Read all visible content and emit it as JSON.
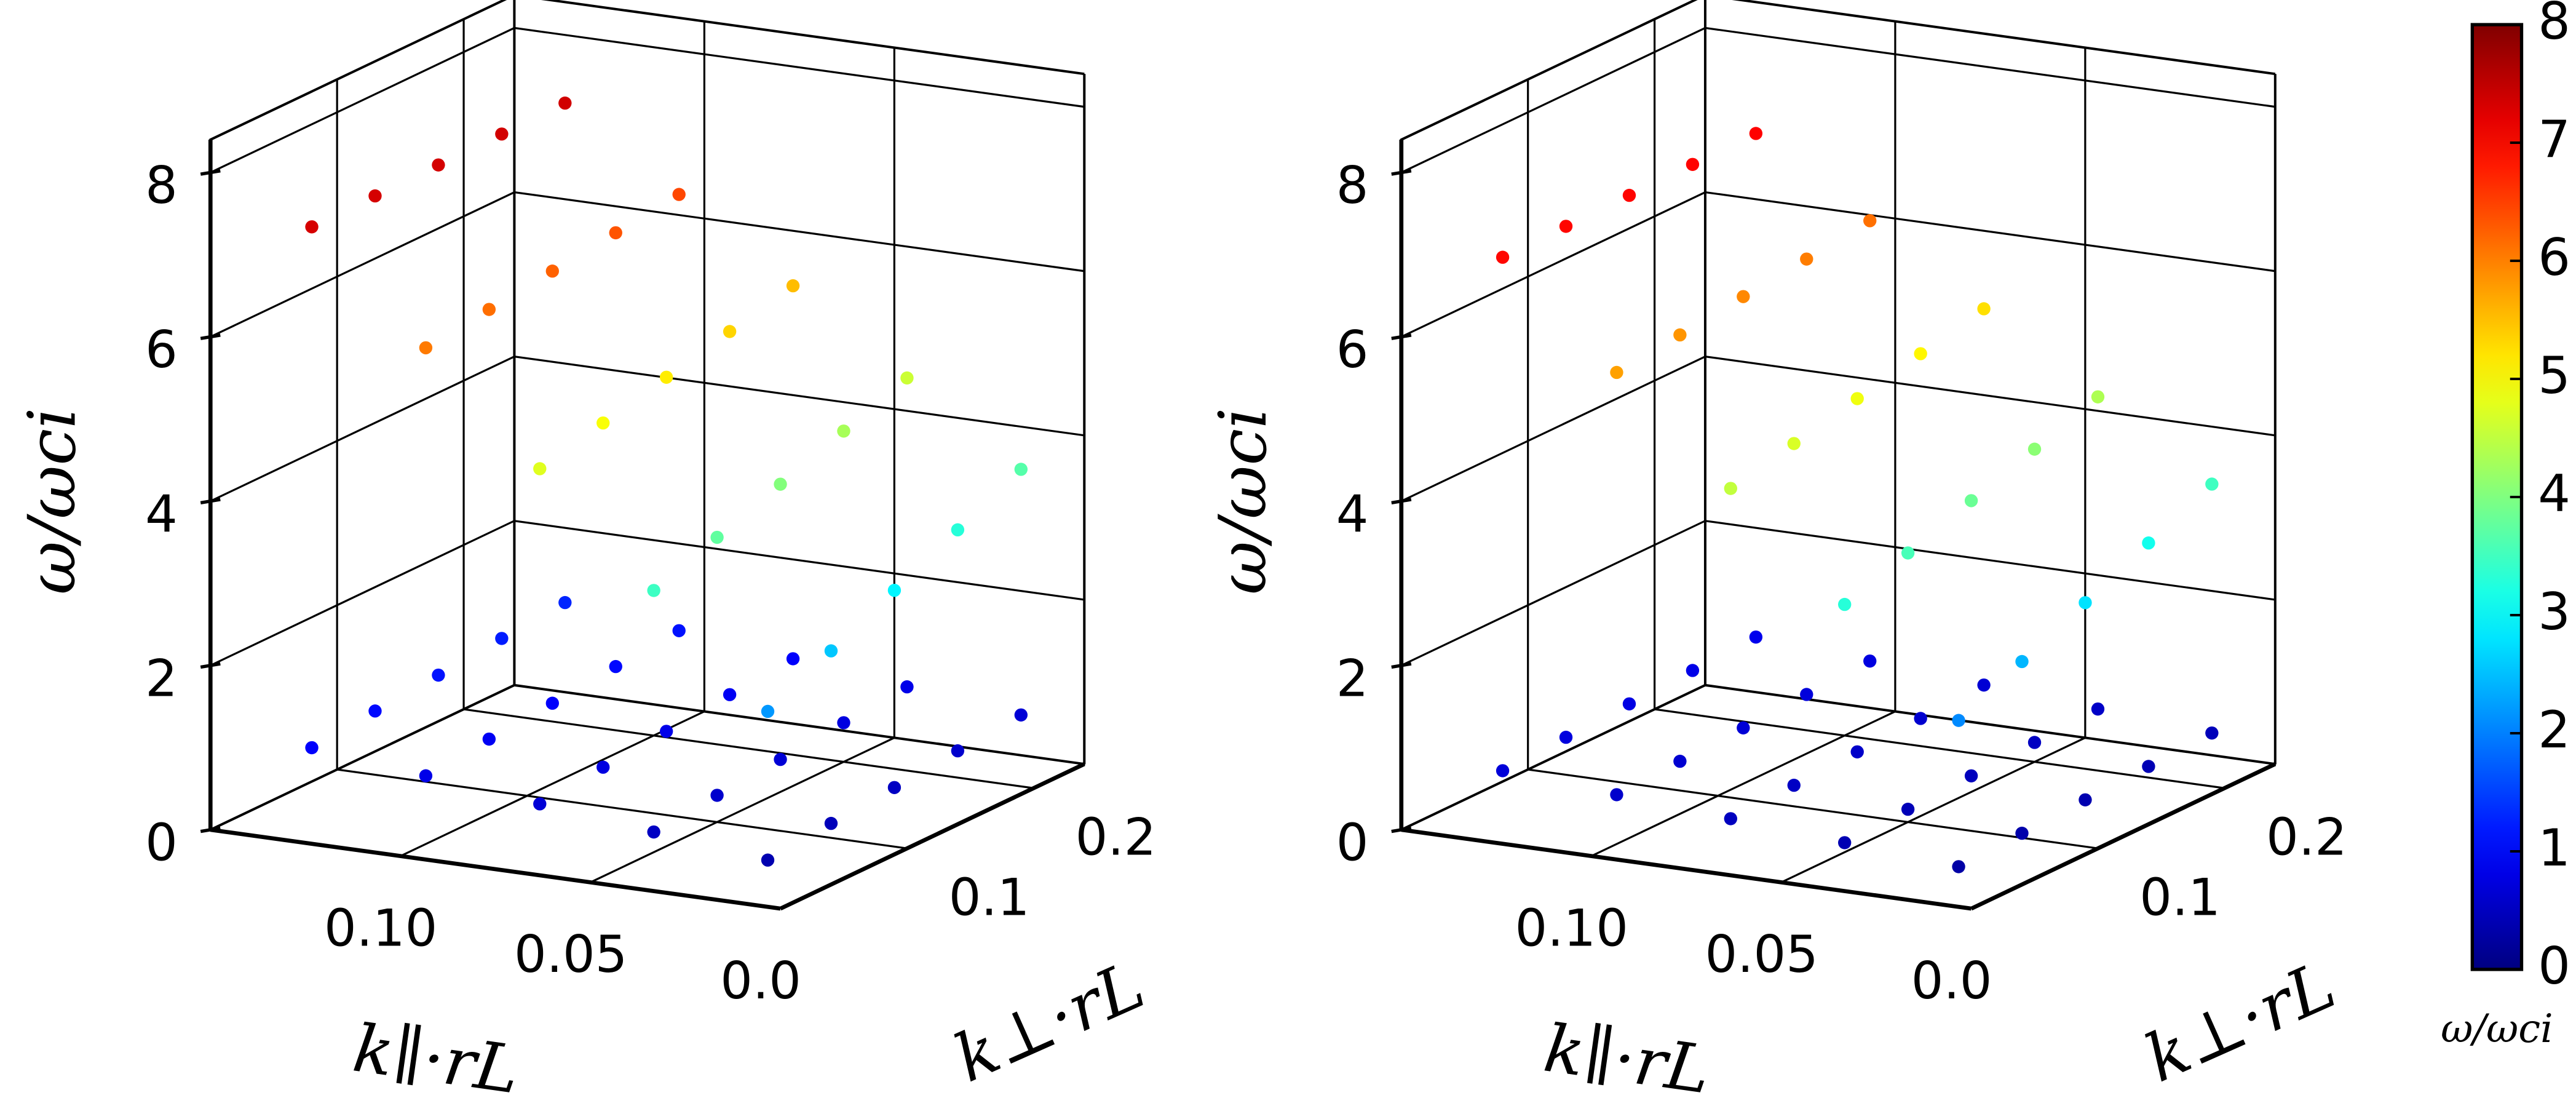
{
  "chart_data": [
    {
      "type": "scatter3d",
      "xlabel": "k∥·rL",
      "ylabel": "k⊥·rL",
      "zlabel": "ω/ωci",
      "xlim": [
        0,
        0.15
      ],
      "ylim": [
        0,
        0.24
      ],
      "zlim": [
        0,
        8.4
      ],
      "xticks": [
        {
          "value": 0,
          "label": "0.0"
        },
        {
          "value": 0.05,
          "label": "0.05"
        },
        {
          "value": 0.1,
          "label": "0.10"
        }
      ],
      "yticks": [
        0.1,
        0.2
      ],
      "zticks": [
        0,
        2,
        4,
        6,
        8
      ],
      "grid": true,
      "colormap": "jet",
      "series": [
        {
          "x": [
            0.01,
            0.01,
            0.01,
            0.01,
            0.01,
            0.04,
            0.04,
            0.04,
            0.04,
            0.04,
            0.07,
            0.07,
            0.07,
            0.07,
            0.07,
            0.1,
            0.1,
            0.1,
            0.1,
            0.1,
            0.13,
            0.13,
            0.13,
            0.13,
            0.13
          ],
          "y": [
            0.02,
            0.07,
            0.12,
            0.17,
            0.22,
            0.02,
            0.07,
            0.12,
            0.17,
            0.22,
            0.02,
            0.07,
            0.12,
            0.17,
            0.22,
            0.02,
            0.07,
            0.12,
            0.17,
            0.22,
            0.02,
            0.07,
            0.12,
            0.17,
            0.22
          ],
          "z": [
            0.38,
            0.46,
            0.53,
            0.61,
            0.68,
            0.53,
            0.61,
            0.68,
            0.76,
            0.83,
            0.68,
            0.76,
            0.83,
            0.91,
            0.98,
            0.83,
            0.91,
            0.98,
            1.06,
            1.13,
            0.98,
            1.06,
            1.13,
            1.21,
            1.28
          ]
        },
        {
          "x": [
            0.01,
            0.01,
            0.01,
            0.01,
            0.01,
            0.04,
            0.04,
            0.04,
            0.04,
            0.04,
            0.07,
            0.07,
            0.07,
            0.07,
            0.07,
            0.1,
            0.1,
            0.1,
            0.1,
            0.1,
            0.13,
            0.13,
            0.13,
            0.13,
            0.13
          ],
          "y": [
            0.02,
            0.07,
            0.12,
            0.17,
            0.22,
            0.02,
            0.07,
            0.12,
            0.17,
            0.22,
            0.02,
            0.07,
            0.12,
            0.17,
            0.22,
            0.02,
            0.07,
            0.12,
            0.17,
            0.22,
            0.02,
            0.07,
            0.12,
            0.17,
            0.22
          ],
          "z": [
            2.19,
            2.56,
            2.93,
            3.3,
            3.67,
            3.47,
            3.75,
            4.03,
            4.31,
            4.59,
            4.76,
            4.95,
            5.14,
            5.33,
            5.52,
            6.04,
            6.14,
            6.24,
            6.34,
            6.44,
            7.32,
            7.33,
            7.34,
            7.35,
            7.36
          ]
        }
      ]
    },
    {
      "type": "scatter3d",
      "xlabel": "k∥·rL",
      "ylabel": "k⊥·rL",
      "zlabel": "ω/ωci",
      "xlim": [
        0,
        0.15
      ],
      "ylim": [
        0,
        0.24
      ],
      "zlim": [
        0,
        8.4
      ],
      "xticks": [
        {
          "value": 0,
          "label": "0.0"
        },
        {
          "value": 0.05,
          "label": "0.05"
        },
        {
          "value": 0.1,
          "label": "0.10"
        }
      ],
      "yticks": [
        0.1,
        0.2
      ],
      "zticks": [
        0,
        2,
        4,
        6,
        8
      ],
      "grid": true,
      "colormap": "jet",
      "series": [
        {
          "x": [
            0.01,
            0.01,
            0.01,
            0.01,
            0.01,
            0.04,
            0.04,
            0.04,
            0.04,
            0.04,
            0.07,
            0.07,
            0.07,
            0.07,
            0.07,
            0.1,
            0.1,
            0.1,
            0.1,
            0.1,
            0.13,
            0.13,
            0.13,
            0.13,
            0.13
          ],
          "y": [
            0.02,
            0.07,
            0.12,
            0.17,
            0.22,
            0.02,
            0.07,
            0.12,
            0.17,
            0.22,
            0.02,
            0.07,
            0.12,
            0.17,
            0.22,
            0.02,
            0.07,
            0.12,
            0.17,
            0.22,
            0.02,
            0.07,
            0.12,
            0.17,
            0.22
          ],
          "z": [
            0.3,
            0.34,
            0.38,
            0.42,
            0.46,
            0.4,
            0.44,
            0.48,
            0.52,
            0.56,
            0.5,
            0.54,
            0.58,
            0.62,
            0.66,
            0.6,
            0.64,
            0.68,
            0.72,
            0.76,
            0.7,
            0.74,
            0.78,
            0.82,
            0.86
          ]
        },
        {
          "x": [
            0.01,
            0.01,
            0.01,
            0.01,
            0.01,
            0.04,
            0.04,
            0.04,
            0.04,
            0.04,
            0.07,
            0.07,
            0.07,
            0.07,
            0.07,
            0.1,
            0.1,
            0.1,
            0.1,
            0.1,
            0.13,
            0.13,
            0.13,
            0.13,
            0.13
          ],
          "y": [
            0.02,
            0.07,
            0.12,
            0.17,
            0.22,
            0.02,
            0.07,
            0.12,
            0.17,
            0.22,
            0.02,
            0.07,
            0.12,
            0.17,
            0.22,
            0.02,
            0.07,
            0.12,
            0.17,
            0.22,
            0.02,
            0.07,
            0.12,
            0.17,
            0.22
          ],
          "z": [
            2.08,
            2.43,
            2.78,
            3.14,
            3.49,
            3.3,
            3.56,
            3.83,
            4.09,
            4.36,
            4.52,
            4.7,
            4.88,
            5.06,
            5.24,
            5.74,
            5.83,
            5.93,
            6.02,
            6.12,
            6.95,
            6.96,
            6.97,
            6.98,
            6.99
          ]
        }
      ]
    }
  ],
  "colorbar": {
    "label": "ω/ωci",
    "lim": [
      0,
      8
    ],
    "ticks": [
      0,
      1,
      2,
      3,
      4,
      5,
      6,
      7,
      8
    ],
    "colormap": "jet"
  }
}
